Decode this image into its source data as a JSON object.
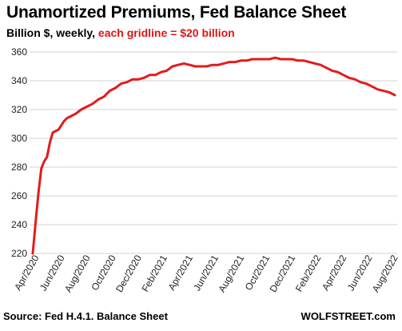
{
  "header": {
    "title": "Unamortized  Premiums,  Fed Balance Sheet",
    "subtitle_prefix": "Billion $, weekly, ",
    "subtitle_highlight": "each gridline = $20 billion"
  },
  "footer": {
    "source": "Source: Fed H.4.1. Balance Sheet",
    "brand": "WOLFSTREET.com"
  },
  "colors": {
    "line": "#e31b1b",
    "grid": "#d0d0d0",
    "highlight_text": "#e01414"
  },
  "chart_data": {
    "type": "line",
    "title": "Unamortized  Premiums,  Fed Balance Sheet",
    "ylabel": "Billion $, weekly",
    "ylim": [
      220,
      360
    ],
    "y_ticks": [
      220,
      240,
      260,
      280,
      300,
      320,
      340,
      360
    ],
    "x_tick_labels": [
      "Apr/2020",
      "Jun/2020",
      "Aug/2020",
      "Oct/2020",
      "Dec/2020",
      "Feb/2021",
      "Apr/2021",
      "Jun/2021",
      "Aug/2021",
      "Oct/2021",
      "Dec/2021",
      "Feb/2022",
      "Apr/2022",
      "Jun/2022",
      "Aug/2022"
    ],
    "grid": true,
    "legend": "none",
    "series": [
      {
        "values": [
          {
            "x": "2020-04-01",
            "y": 220
          },
          {
            "x": "2020-04-08",
            "y": 242
          },
          {
            "x": "2020-04-15",
            "y": 262
          },
          {
            "x": "2020-04-22",
            "y": 279
          },
          {
            "x": "2020-04-29",
            "y": 284
          },
          {
            "x": "2020-05-06",
            "y": 287
          },
          {
            "x": "2020-05-13",
            "y": 297
          },
          {
            "x": "2020-05-20",
            "y": 304
          },
          {
            "x": "2020-05-27",
            "y": 305
          },
          {
            "x": "2020-06-03",
            "y": 306
          },
          {
            "x": "2020-06-10",
            "y": 309
          },
          {
            "x": "2020-06-17",
            "y": 312
          },
          {
            "x": "2020-06-24",
            "y": 314
          },
          {
            "x": "2020-07-01",
            "y": 315
          },
          {
            "x": "2020-07-15",
            "y": 317
          },
          {
            "x": "2020-07-29",
            "y": 320
          },
          {
            "x": "2020-08-12",
            "y": 322
          },
          {
            "x": "2020-08-26",
            "y": 324
          },
          {
            "x": "2020-09-09",
            "y": 327
          },
          {
            "x": "2020-09-23",
            "y": 329
          },
          {
            "x": "2020-10-07",
            "y": 333
          },
          {
            "x": "2020-10-21",
            "y": 335
          },
          {
            "x": "2020-11-04",
            "y": 338
          },
          {
            "x": "2020-11-18",
            "y": 339
          },
          {
            "x": "2020-12-02",
            "y": 341
          },
          {
            "x": "2020-12-16",
            "y": 341
          },
          {
            "x": "2020-12-30",
            "y": 342
          },
          {
            "x": "2021-01-13",
            "y": 344
          },
          {
            "x": "2021-01-27",
            "y": 344
          },
          {
            "x": "2021-02-10",
            "y": 346
          },
          {
            "x": "2021-02-24",
            "y": 347
          },
          {
            "x": "2021-03-10",
            "y": 350
          },
          {
            "x": "2021-03-24",
            "y": 351
          },
          {
            "x": "2021-04-07",
            "y": 352
          },
          {
            "x": "2021-04-21",
            "y": 351
          },
          {
            "x": "2021-05-05",
            "y": 350
          },
          {
            "x": "2021-05-19",
            "y": 350
          },
          {
            "x": "2021-06-02",
            "y": 350
          },
          {
            "x": "2021-06-16",
            "y": 351
          },
          {
            "x": "2021-06-30",
            "y": 351
          },
          {
            "x": "2021-07-14",
            "y": 352
          },
          {
            "x": "2021-07-28",
            "y": 353
          },
          {
            "x": "2021-08-11",
            "y": 353
          },
          {
            "x": "2021-08-25",
            "y": 354
          },
          {
            "x": "2021-09-08",
            "y": 354
          },
          {
            "x": "2021-09-22",
            "y": 355
          },
          {
            "x": "2021-10-06",
            "y": 355
          },
          {
            "x": "2021-10-20",
            "y": 355
          },
          {
            "x": "2021-11-03",
            "y": 355
          },
          {
            "x": "2021-11-17",
            "y": 356
          },
          {
            "x": "2021-12-01",
            "y": 355
          },
          {
            "x": "2021-12-15",
            "y": 355
          },
          {
            "x": "2021-12-29",
            "y": 355
          },
          {
            "x": "2022-01-12",
            "y": 354
          },
          {
            "x": "2022-01-26",
            "y": 354
          },
          {
            "x": "2022-02-09",
            "y": 353
          },
          {
            "x": "2022-02-23",
            "y": 352
          },
          {
            "x": "2022-03-09",
            "y": 351
          },
          {
            "x": "2022-03-23",
            "y": 349
          },
          {
            "x": "2022-04-06",
            "y": 347
          },
          {
            "x": "2022-04-20",
            "y": 346
          },
          {
            "x": "2022-05-04",
            "y": 344
          },
          {
            "x": "2022-05-18",
            "y": 342
          },
          {
            "x": "2022-06-01",
            "y": 341
          },
          {
            "x": "2022-06-15",
            "y": 339
          },
          {
            "x": "2022-06-29",
            "y": 338
          },
          {
            "x": "2022-07-13",
            "y": 336
          },
          {
            "x": "2022-07-27",
            "y": 334
          },
          {
            "x": "2022-08-10",
            "y": 333
          },
          {
            "x": "2022-08-24",
            "y": 332
          },
          {
            "x": "2022-09-07",
            "y": 330
          }
        ]
      }
    ]
  }
}
